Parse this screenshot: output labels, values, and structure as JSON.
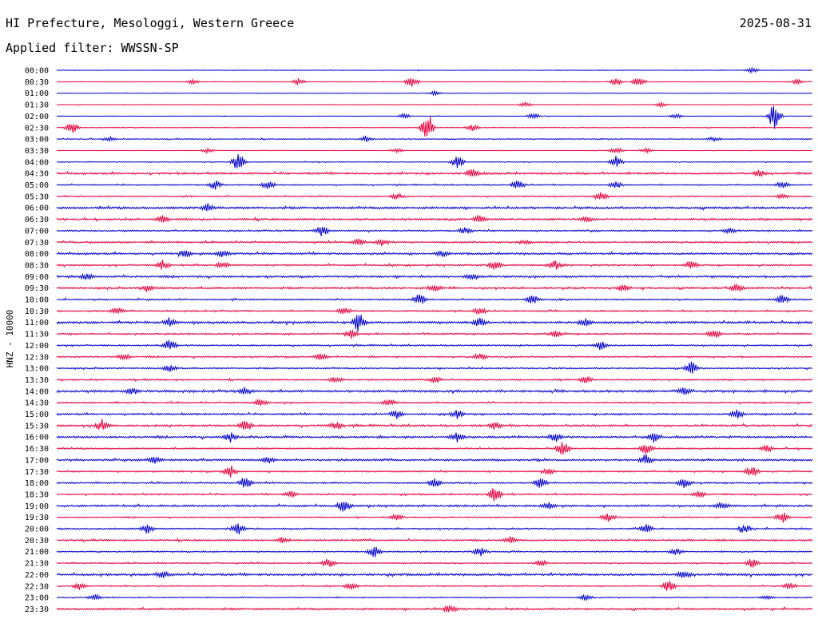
{
  "header": {
    "station_title": "HI Prefecture, Mesologgi, Western Greece",
    "date": "2025-08-31",
    "filter_label": "Applied filter: WWSSN-SP"
  },
  "chart_data": {
    "type": "line",
    "ylabel": "HNZ - 10000",
    "row_labels": [
      "00:00",
      "00:30",
      "01:00",
      "01:30",
      "02:00",
      "02:30",
      "03:00",
      "03:30",
      "04:00",
      "04:30",
      "05:00",
      "05:30",
      "06:00",
      "06:30",
      "07:00",
      "07:30",
      "08:00",
      "08:30",
      "09:00",
      "09:30",
      "10:00",
      "10:30",
      "11:00",
      "11:30",
      "12:00",
      "12:30",
      "13:00",
      "13:30",
      "14:00",
      "14:30",
      "15:00",
      "15:30",
      "16:00",
      "16:30",
      "17:00",
      "17:30",
      "18:00",
      "18:30",
      "19:00",
      "19:30",
      "20:00",
      "20:30",
      "21:00",
      "21:30",
      "22:00",
      "22:30",
      "23:00",
      "23:30"
    ],
    "colors": [
      "#0000cc",
      "#e8003c"
    ],
    "row_noise_level": [
      0.3,
      0.2,
      0.2,
      0.2,
      0.2,
      0.3,
      0.4,
      0.2,
      0.3,
      0.8,
      0.5,
      0.5,
      0.9,
      0.8,
      0.6,
      0.7,
      0.8,
      0.7,
      0.8,
      0.8,
      0.6,
      0.6,
      0.9,
      0.6,
      0.6,
      0.6,
      0.6,
      0.6,
      0.9,
      0.6,
      0.7,
      0.8,
      0.8,
      0.6,
      0.8,
      0.6,
      0.6,
      0.6,
      0.8,
      0.5,
      0.6,
      0.7,
      0.5,
      0.5,
      0.9,
      0.5,
      0.4,
      0.8
    ],
    "events": [
      [
        [
          0.92,
          2
        ]
      ],
      [
        [
          0.18,
          2
        ],
        [
          0.32,
          3
        ],
        [
          0.47,
          5
        ],
        [
          0.74,
          3
        ],
        [
          0.77,
          4
        ],
        [
          0.98,
          2
        ]
      ],
      [
        [
          0.5,
          2
        ]
      ],
      [
        [
          0.62,
          2
        ],
        [
          0.8,
          2
        ]
      ],
      [
        [
          0.46,
          2
        ],
        [
          0.63,
          3
        ],
        [
          0.82,
          2
        ],
        [
          0.95,
          12
        ]
      ],
      [
        [
          0.02,
          5
        ],
        [
          0.49,
          14
        ],
        [
          0.55,
          3
        ]
      ],
      [
        [
          0.07,
          2
        ],
        [
          0.41,
          3
        ],
        [
          0.87,
          2
        ]
      ],
      [
        [
          0.2,
          2
        ],
        [
          0.45,
          2
        ],
        [
          0.74,
          3
        ],
        [
          0.78,
          2
        ]
      ],
      [
        [
          0.24,
          8
        ],
        [
          0.53,
          6
        ],
        [
          0.74,
          5
        ]
      ],
      [
        [
          0.55,
          4
        ],
        [
          0.93,
          3
        ]
      ],
      [
        [
          0.21,
          4
        ],
        [
          0.28,
          4
        ],
        [
          0.61,
          4
        ],
        [
          0.74,
          3
        ],
        [
          0.96,
          3
        ]
      ],
      [
        [
          0.45,
          3
        ],
        [
          0.72,
          4
        ],
        [
          0.96,
          2
        ]
      ],
      [
        [
          0.2,
          3
        ]
      ],
      [
        [
          0.14,
          3
        ],
        [
          0.56,
          4
        ],
        [
          0.7,
          3
        ]
      ],
      [
        [
          0.35,
          5
        ],
        [
          0.54,
          3
        ],
        [
          0.89,
          2
        ]
      ],
      [
        [
          0.4,
          3
        ],
        [
          0.43,
          3
        ],
        [
          0.62,
          2
        ]
      ],
      [
        [
          0.17,
          3
        ],
        [
          0.22,
          3
        ],
        [
          0.51,
          3
        ]
      ],
      [
        [
          0.14,
          4
        ],
        [
          0.22,
          3
        ],
        [
          0.58,
          4
        ],
        [
          0.66,
          4
        ],
        [
          0.84,
          4
        ]
      ],
      [
        [
          0.04,
          3
        ],
        [
          0.55,
          3
        ]
      ],
      [
        [
          0.12,
          3
        ],
        [
          0.5,
          3
        ],
        [
          0.75,
          3
        ],
        [
          0.9,
          4
        ]
      ],
      [
        [
          0.48,
          5
        ],
        [
          0.63,
          4
        ],
        [
          0.96,
          4
        ]
      ],
      [
        [
          0.08,
          3
        ],
        [
          0.38,
          3
        ],
        [
          0.56,
          3
        ]
      ],
      [
        [
          0.15,
          3
        ],
        [
          0.4,
          9
        ],
        [
          0.56,
          4
        ],
        [
          0.7,
          3
        ]
      ],
      [
        [
          0.39,
          4
        ],
        [
          0.66,
          3
        ],
        [
          0.87,
          4
        ]
      ],
      [
        [
          0.15,
          5
        ],
        [
          0.72,
          4
        ]
      ],
      [
        [
          0.09,
          3
        ],
        [
          0.35,
          3
        ],
        [
          0.56,
          3
        ]
      ],
      [
        [
          0.15,
          3
        ],
        [
          0.84,
          6
        ]
      ],
      [
        [
          0.37,
          3
        ],
        [
          0.5,
          3
        ],
        [
          0.7,
          3
        ]
      ],
      [
        [
          0.1,
          3
        ],
        [
          0.25,
          3
        ],
        [
          0.83,
          3
        ]
      ],
      [
        [
          0.27,
          3
        ],
        [
          0.44,
          3
        ]
      ],
      [
        [
          0.45,
          4
        ],
        [
          0.53,
          4
        ],
        [
          0.9,
          4
        ]
      ],
      [
        [
          0.06,
          5
        ],
        [
          0.25,
          5
        ],
        [
          0.37,
          3
        ],
        [
          0.58,
          3
        ]
      ],
      [
        [
          0.23,
          4
        ],
        [
          0.53,
          4
        ],
        [
          0.66,
          4
        ],
        [
          0.79,
          4
        ]
      ],
      [
        [
          0.67,
          6
        ],
        [
          0.78,
          5
        ],
        [
          0.94,
          3
        ]
      ],
      [
        [
          0.13,
          3
        ],
        [
          0.28,
          3
        ],
        [
          0.78,
          5
        ]
      ],
      [
        [
          0.23,
          5
        ],
        [
          0.65,
          3
        ],
        [
          0.92,
          5
        ]
      ],
      [
        [
          0.25,
          6
        ],
        [
          0.5,
          4
        ],
        [
          0.64,
          5
        ],
        [
          0.83,
          4
        ]
      ],
      [
        [
          0.31,
          3
        ],
        [
          0.58,
          7
        ],
        [
          0.85,
          3
        ]
      ],
      [
        [
          0.38,
          5
        ],
        [
          0.65,
          3
        ],
        [
          0.88,
          3
        ]
      ],
      [
        [
          0.45,
          3
        ],
        [
          0.73,
          4
        ],
        [
          0.96,
          5
        ]
      ],
      [
        [
          0.12,
          4
        ],
        [
          0.24,
          5
        ],
        [
          0.78,
          4
        ],
        [
          0.91,
          4
        ]
      ],
      [
        [
          0.3,
          3
        ],
        [
          0.6,
          3
        ]
      ],
      [
        [
          0.42,
          5
        ],
        [
          0.56,
          4
        ],
        [
          0.82,
          3
        ]
      ],
      [
        [
          0.36,
          5
        ],
        [
          0.64,
          3
        ],
        [
          0.92,
          4
        ]
      ],
      [
        [
          0.14,
          3
        ],
        [
          0.83,
          3
        ]
      ],
      [
        [
          0.03,
          3
        ],
        [
          0.39,
          3
        ],
        [
          0.81,
          5
        ],
        [
          0.97,
          3
        ]
      ],
      [
        [
          0.05,
          3
        ],
        [
          0.7,
          3
        ],
        [
          0.94,
          2
        ]
      ],
      [
        [
          0.52,
          4
        ]
      ]
    ]
  }
}
